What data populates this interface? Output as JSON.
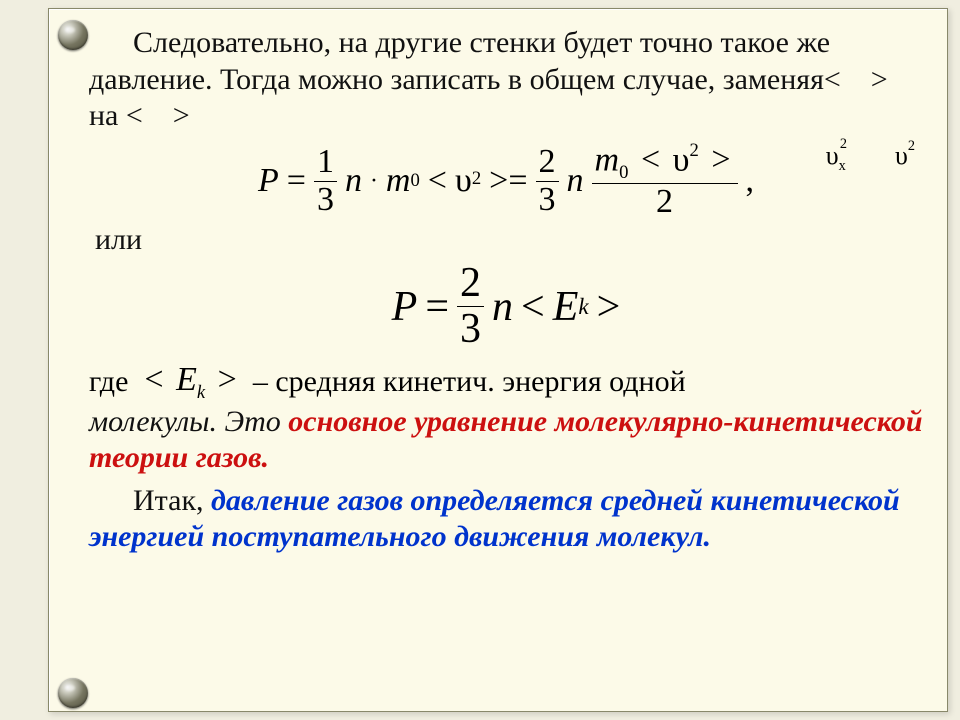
{
  "colors": {
    "page_bg": "#f0eee0",
    "panel_bg": "#fcfae8",
    "panel_border": "#88886a",
    "text": "#111111",
    "red": "#cc1010",
    "blue": "#0033cc",
    "rivet_dark": "#4a4938"
  },
  "typography": {
    "family": "Times New Roman",
    "body_size_pt": 22,
    "eq1_size_pt": 26,
    "eq2_size_pt": 32,
    "line_height": 1.22
  },
  "text": {
    "p1_a": "Следовательно, на другие стенки будет точно такое же давление. Тогда можно записать в общем случае, заменяя< > на < >",
    "or": "или",
    "where": "где",
    "dash_desc": "– средняя кинетич. энергия одной",
    "p2_line2_black": " молекулы. Это ",
    "p2_red": "основное уравнение молекулярно-кинетической теории газов.",
    "p3_black": "Итак, ",
    "p3_blue": "давление газов определяется средней кинетической энергией поступательного движения молекул."
  },
  "symbols": {
    "vx2": "υ",
    "vx2_sub": "x",
    "vx2_sup": "2",
    "v2": "υ",
    "v2_sup": "2",
    "P": "P",
    "eq": "=",
    "n": "n",
    "m0": "m",
    "m0_sub": "0",
    "lt": "<",
    "gt": ">",
    "ge_close": ">=",
    "Ek_E": "E",
    "Ek_k": "k",
    "comma": ",",
    "dot": "·"
  },
  "eq1": {
    "f1_num": "1",
    "f1_den": "3",
    "f2_num": "2",
    "f2_den": "3",
    "long_den": "2"
  },
  "eq2": {
    "f_num": "2",
    "f_den": "3"
  }
}
